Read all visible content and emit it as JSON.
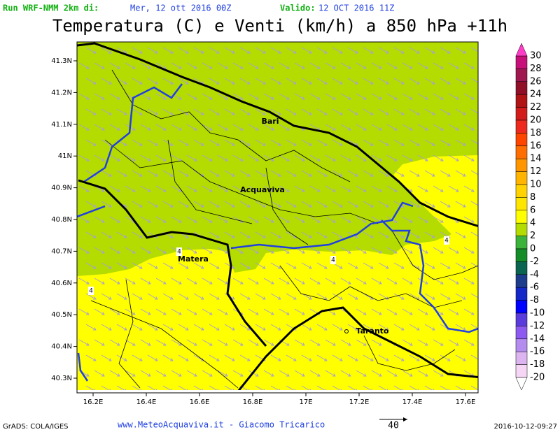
{
  "header": {
    "run_label": "Run WRF-NMM 2km di:",
    "run_date": "Mer, 12 ott 2016 00Z",
    "valid_label": "Valido:",
    "valid_date": "12 OCT 2016 11Z",
    "title": "Temperatura (C) e Venti (km/h) a 850 hPa +11h"
  },
  "map": {
    "lat_labels": [
      "41.3N",
      "41.2N",
      "41.1N",
      "41N",
      "40.9N",
      "40.8N",
      "40.7N",
      "40.6N",
      "40.5N",
      "40.4N",
      "40.3N"
    ],
    "lon_labels": [
      "16.2E",
      "16.4E",
      "16.6E",
      "16.8E",
      "17E",
      "17.2E",
      "17.4E",
      "17.6E"
    ],
    "cities": [
      "Bari",
      "Acquaviva",
      "Matera",
      "Taranto"
    ],
    "contour_labels": [
      "4",
      "4",
      "4",
      "4"
    ]
  },
  "colorbar": {
    "labels": [
      "30",
      "28",
      "26",
      "24",
      "22",
      "20",
      "18",
      "16",
      "14",
      "12",
      "10",
      "8",
      "6",
      "4",
      "2",
      "0",
      "-2",
      "-4",
      "-6",
      "-8",
      "-10",
      "-12",
      "-14",
      "-16",
      "-18",
      "-20"
    ],
    "colors": [
      "#c8107a",
      "#a01850",
      "#901028",
      "#b01414",
      "#d21c1c",
      "#ee2a1e",
      "#ff4600",
      "#ff6e00",
      "#ff9600",
      "#ffb400",
      "#ffd200",
      "#ffe600",
      "#ffff00",
      "#b4dc00",
      "#3cb43c",
      "#148c28",
      "#0a6450",
      "#1e3c8c",
      "#1428c8",
      "#0000ff",
      "#5a3cdc",
      "#8c5af0",
      "#b48cf0",
      "#dcb4f0",
      "#f5d7f5"
    ],
    "top_color": "#ff3cc8",
    "bottom_color": "#ffffff"
  },
  "footer": {
    "credit": "GrADS: COLA/IGES",
    "site": "www.MeteoAcquaviva.it - Giacomo Tricarico",
    "vector_scale": "40",
    "timestamp": "2016-10-12-09:27"
  }
}
